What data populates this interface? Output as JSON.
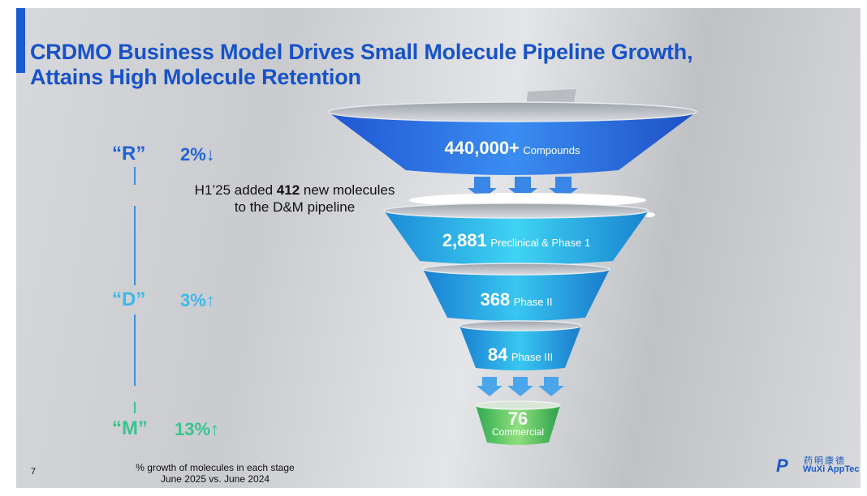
{
  "title": {
    "line1": "CRDMO Business Model Drives Small Molecule Pipeline Growth,",
    "line2": "Attains High Molecule Retention"
  },
  "stages": [
    {
      "letter": "“R”",
      "growth": "2%↓",
      "color": "#1f63d6",
      "pct_color": "#1f63d6"
    },
    {
      "letter": "“D”",
      "growth": "3%↑",
      "color": "#3bb8ea",
      "pct_color": "#3bb8ea"
    },
    {
      "letter": "“M”",
      "growth": "13%↑",
      "color": "#38c48e",
      "pct_color": "#38c48e"
    }
  ],
  "note": {
    "prefix": "H1’25 added",
    "number": "412",
    "suffix": "new molecules",
    "line2": "to the D&M pipeline"
  },
  "funnel": [
    {
      "number": "440,000+",
      "label": "Compounds"
    },
    {
      "number": "2,881",
      "label": "Preclinical & Phase 1"
    },
    {
      "number": "368",
      "label": "Phase II"
    },
    {
      "number": "84",
      "label": "Phase III"
    },
    {
      "number": "76",
      "label": "Commercial"
    }
  ],
  "footnote": {
    "line1": "% growth of molecules in each stage",
    "line2": "June 2025 vs. June 2024"
  },
  "page_number": "7",
  "logo": {
    "mark": "P",
    "cn": "药明康德",
    "en": "WuXi AppTec"
  },
  "colors": {
    "title": "#1752c9",
    "accent": "#1a5ccc"
  }
}
